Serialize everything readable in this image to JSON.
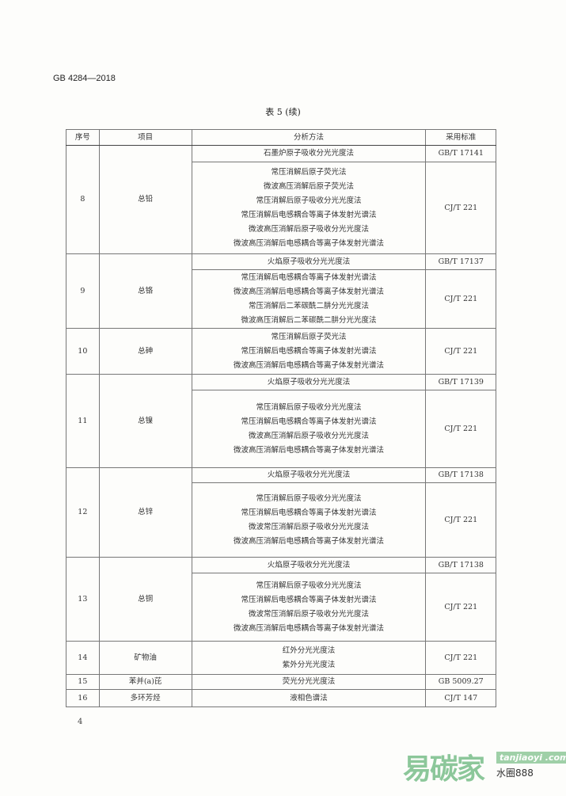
{
  "header": {
    "standard_number": "GB 4284—2018",
    "table_caption": "表 5 (续)"
  },
  "table": {
    "columns": [
      "序号",
      "项目",
      "分析方法",
      "采用标准"
    ],
    "rows": [
      {
        "no": "8",
        "item": "总铅",
        "groups": [
          {
            "methods": [
              "石墨炉原子吸收分光光度法"
            ],
            "standard": "GB/T 17141"
          },
          {
            "methods": [
              "常压消解后原子荧光法",
              "微波高压消解后原子荧光法",
              "常压消解后原子吸收分光光度法",
              "常压消解后电感耦合等离子体发射光谱法",
              "微波高压消解后原子吸收分光光度法",
              "微波高压消解后电感耦合等离子体发射光谱法"
            ],
            "standard": "CJ/T 221"
          }
        ]
      },
      {
        "no": "9",
        "item": "总铬",
        "groups": [
          {
            "methods": [
              "火焰原子吸收分光光度法"
            ],
            "standard": "GB/T 17137"
          },
          {
            "methods": [
              "常压消解后电感耦合等离子体发射光谱法",
              "微波高压消解后电感耦合等离子体发射光谱法",
              "常压消解后二苯碳酰二肼分光光度法",
              "微波高压消解后二苯碳酰二肼分光光度法"
            ],
            "standard": "CJ/T 221"
          }
        ]
      },
      {
        "no": "10",
        "item": "总砷",
        "groups": [
          {
            "methods": [
              "常压消解后原子荧光法",
              "常压消解后电感耦合等离子体发射光谱法",
              "微波高压消解后电感耦合等离子体发射光谱法"
            ],
            "standard": "CJ/T 221"
          }
        ]
      },
      {
        "no": "11",
        "item": "总镍",
        "groups": [
          {
            "methods": [
              "火焰原子吸收分光光度法"
            ],
            "standard": "GB/T 17139"
          },
          {
            "methods": [
              "常压消解后原子吸收分光光度法",
              "常压消解后电感耦合等离子体发射光谱法",
              "微波高压消解后原子吸收分光光度法",
              "微波高压消解后电感耦合等离子体发射光谱法"
            ],
            "standard": "CJ/T 221"
          }
        ]
      },
      {
        "no": "12",
        "item": "总锌",
        "groups": [
          {
            "methods": [
              "火焰原子吸收分光光度法"
            ],
            "standard": "GB/T 17138"
          },
          {
            "methods": [
              "常压消解后原子吸收分光光度法",
              "常压消解后电感耦合等离子体发射光谱法",
              "微波常压消解后原子吸收分光光度法",
              "微波高压消解后电感耦合等离子体发射光谱法"
            ],
            "standard": "CJ/T 221"
          }
        ]
      },
      {
        "no": "13",
        "item": "总铜",
        "groups": [
          {
            "methods": [
              "火焰原子吸收分光光度法"
            ],
            "standard": "GB/T 17138"
          },
          {
            "methods": [
              "常压消解后原子吸收分光光度法",
              "常压消解后电感耦合等离子体发射光谱法",
              "微波常压消解后原子吸收分光光度法",
              "微波高压消解后电感耦合等离子体发射光谱法"
            ],
            "standard": "CJ/T 221"
          }
        ]
      },
      {
        "no": "14",
        "item": "矿物油",
        "groups": [
          {
            "methods": [
              "红外分光光度法",
              "紫外分光光度法"
            ],
            "standard": "CJ/T 221"
          }
        ]
      },
      {
        "no": "15",
        "item": "苯并(a)芘",
        "groups": [
          {
            "methods": [
              "荧光分光光度法"
            ],
            "standard": "GB 5009.27"
          }
        ]
      },
      {
        "no": "16",
        "item": "多环芳烃",
        "groups": [
          {
            "methods": [
              "液相色谱法"
            ],
            "standard": "CJ/T 147"
          }
        ]
      }
    ]
  },
  "footer": {
    "page_number": "4"
  },
  "watermark": {
    "logo_text": "易碳家",
    "site_text": "tanjiaoyi .com",
    "account_text": "水圈888",
    "colors": {
      "green": "#8cc79a",
      "orange": "#f2b98a"
    }
  }
}
